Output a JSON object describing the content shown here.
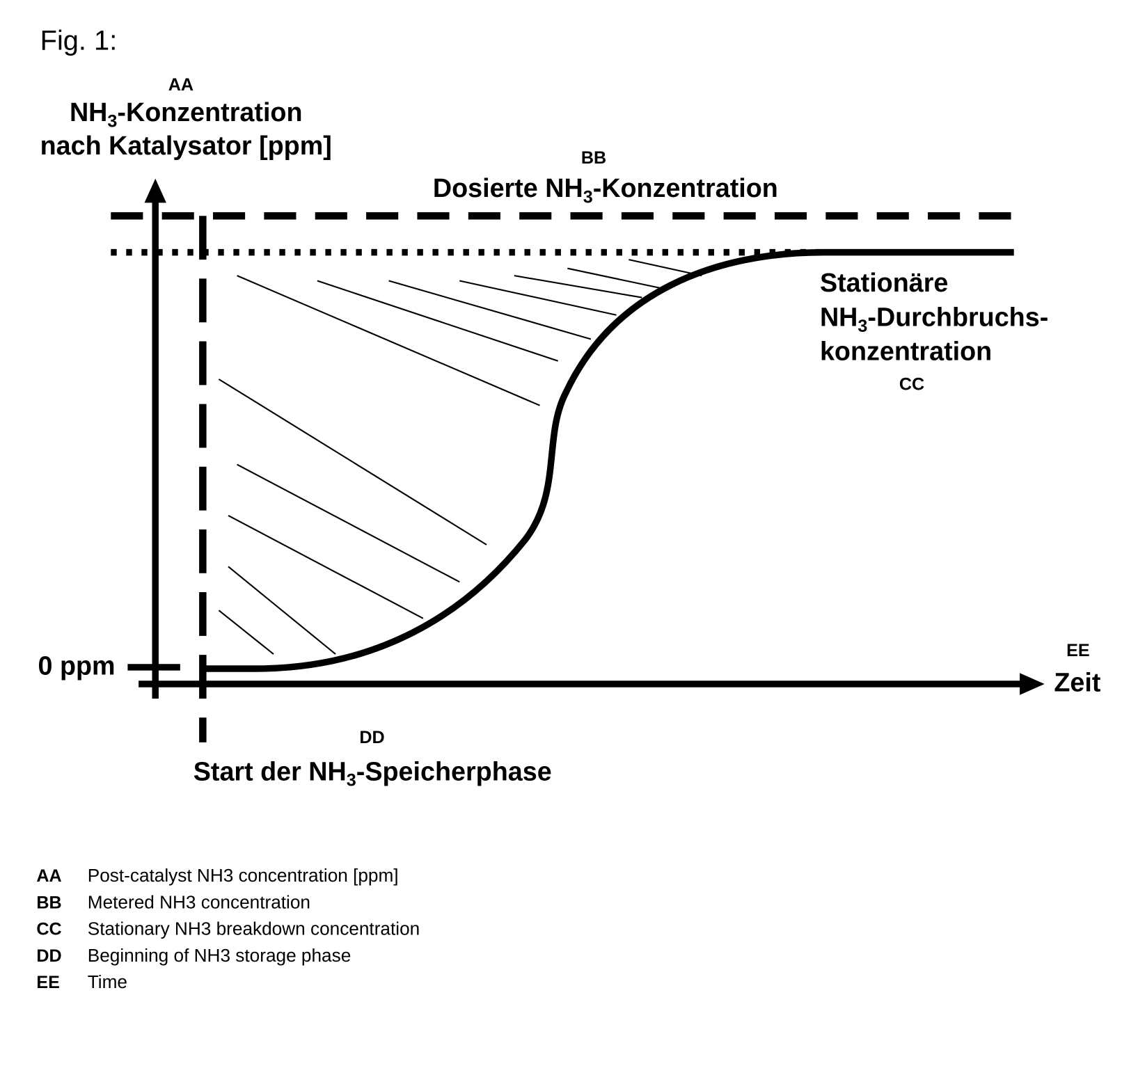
{
  "figure_label": "Fig. 1:",
  "y_axis": {
    "code": "AA",
    "line1": {
      "pre": "NH",
      "sub": "3",
      "post": "-Konzentration"
    },
    "line2": "nach Katalysator [ppm]",
    "zero_label": "0 ppm"
  },
  "metered": {
    "code": "BB",
    "line1": {
      "pre": "Dosierte NH",
      "sub": "3",
      "post": "-Konzentration"
    }
  },
  "stationary": {
    "line1": "Stationäre",
    "line2": {
      "pre": "NH",
      "sub": "3",
      "post": "-Durchbruchs-"
    },
    "line3": "konzentration",
    "code": "CC"
  },
  "x_axis": {
    "code": "EE",
    "title": "Zeit"
  },
  "storage_start": {
    "code": "DD",
    "line1": {
      "pre": "Start der NH",
      "sub": "3",
      "post": "-Speicherphase"
    }
  },
  "legend": [
    {
      "code": "AA",
      "text": "Post-catalyst NH3 concentration [ppm]"
    },
    {
      "code": "BB",
      "text": "Metered NH3 concentration"
    },
    {
      "code": "CC",
      "text": "Stationary NH3 breakdown concentration"
    },
    {
      "code": "DD",
      "text": "Beginning of NH3 storage phase"
    },
    {
      "code": "EE",
      "text": "Time"
    }
  ]
}
